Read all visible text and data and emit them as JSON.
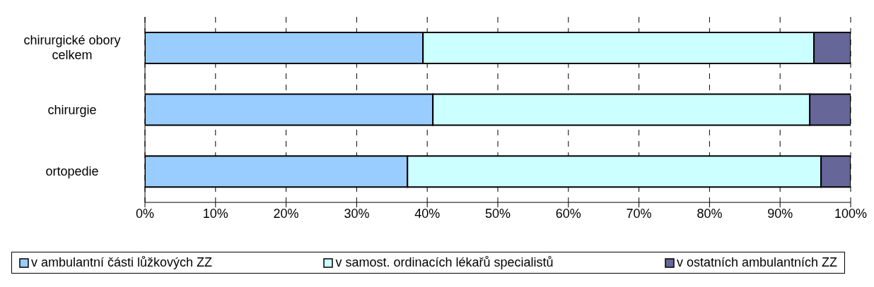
{
  "chart_data": {
    "type": "bar",
    "orientation": "horizontal",
    "stacked": true,
    "categories": [
      "chirurgické obory celkem",
      "chirurgie",
      "ortopedie"
    ],
    "series": [
      {
        "name": "v ambulantní části lůžkových ZZ",
        "color": "#99ccff",
        "values": [
          39.4,
          40.8,
          37.2
        ]
      },
      {
        "name": "v samost. ordinacích lékařů specialistů",
        "color": "#ccffff",
        "values": [
          55.4,
          53.4,
          58.6
        ]
      },
      {
        "name": "v ostatních ambulantních ZZ",
        "color": "#666699",
        "values": [
          5.2,
          5.8,
          4.2
        ]
      }
    ],
    "xlim": [
      0,
      100
    ],
    "xticks": [
      {
        "value": 0,
        "label": "0%"
      },
      {
        "value": 10,
        "label": "10%"
      },
      {
        "value": 20,
        "label": "20%"
      },
      {
        "value": 30,
        "label": "30%"
      },
      {
        "value": 40,
        "label": "40%"
      },
      {
        "value": 50,
        "label": "50%"
      },
      {
        "value": 60,
        "label": "60%"
      },
      {
        "value": 70,
        "label": "70%"
      },
      {
        "value": 80,
        "label": "80%"
      },
      {
        "value": 90,
        "label": "90%"
      },
      {
        "value": 100,
        "label": "100%"
      }
    ],
    "grid": "x",
    "legend": "bottom"
  }
}
